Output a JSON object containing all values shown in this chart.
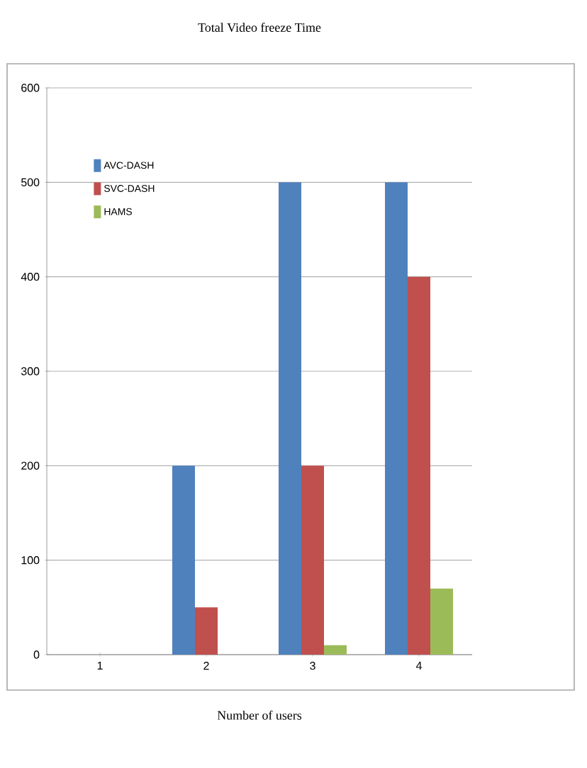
{
  "chart_data": {
    "type": "bar",
    "title": "Total Video freeze Time",
    "xlabel": "Number of users",
    "categories": [
      "1",
      "2",
      "3",
      "4"
    ],
    "series": [
      {
        "name": "AVC-DASH",
        "color": "#4f81bd",
        "values": [
          0,
          200,
          500,
          500
        ]
      },
      {
        "name": "SVC-DASH",
        "color": "#c0504d",
        "values": [
          0,
          50,
          200,
          400
        ]
      },
      {
        "name": "HAMS",
        "color": "#9bbb59",
        "values": [
          0,
          0,
          10,
          70
        ]
      }
    ],
    "ylim": [
      0,
      600
    ],
    "yticks": [
      0,
      100,
      200,
      300,
      400,
      500,
      600
    ],
    "grid": "y",
    "legend": "top left"
  }
}
